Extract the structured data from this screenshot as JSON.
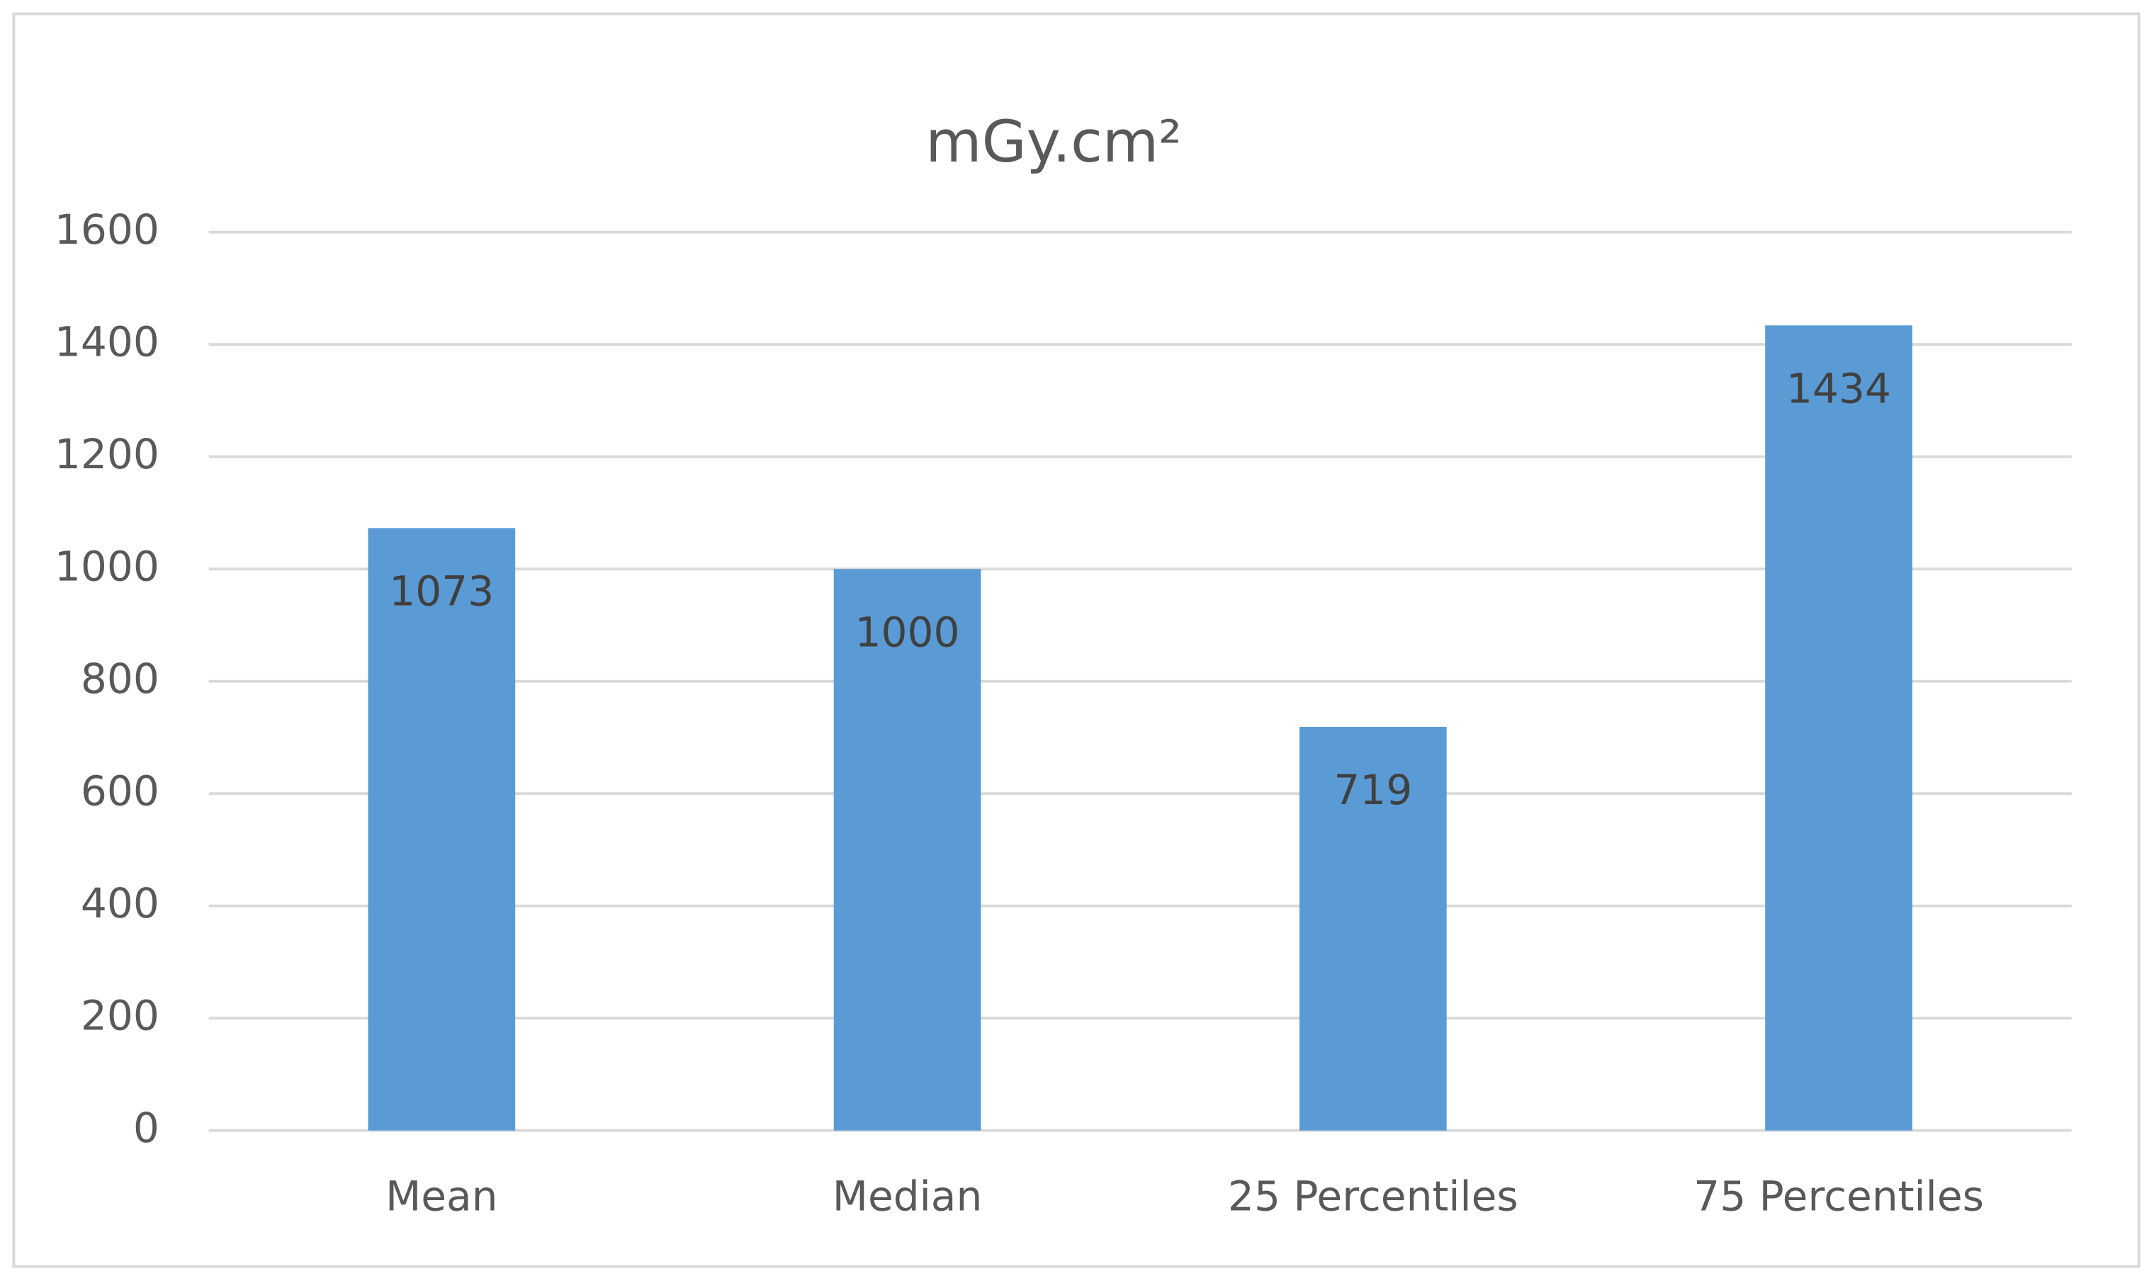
{
  "chart_data": {
    "type": "bar",
    "title": "mGy.cm²",
    "categories": [
      "Mean",
      "Median",
      "25 Percentiles",
      "75 Percentiles"
    ],
    "values": [
      1073,
      1000,
      719,
      1434
    ],
    "color": "#5b9bd5",
    "ylim": [
      0,
      1600
    ],
    "yticks": [
      0,
      200,
      400,
      600,
      800,
      1000,
      1200,
      1400,
      1600
    ],
    "grid": true
  }
}
